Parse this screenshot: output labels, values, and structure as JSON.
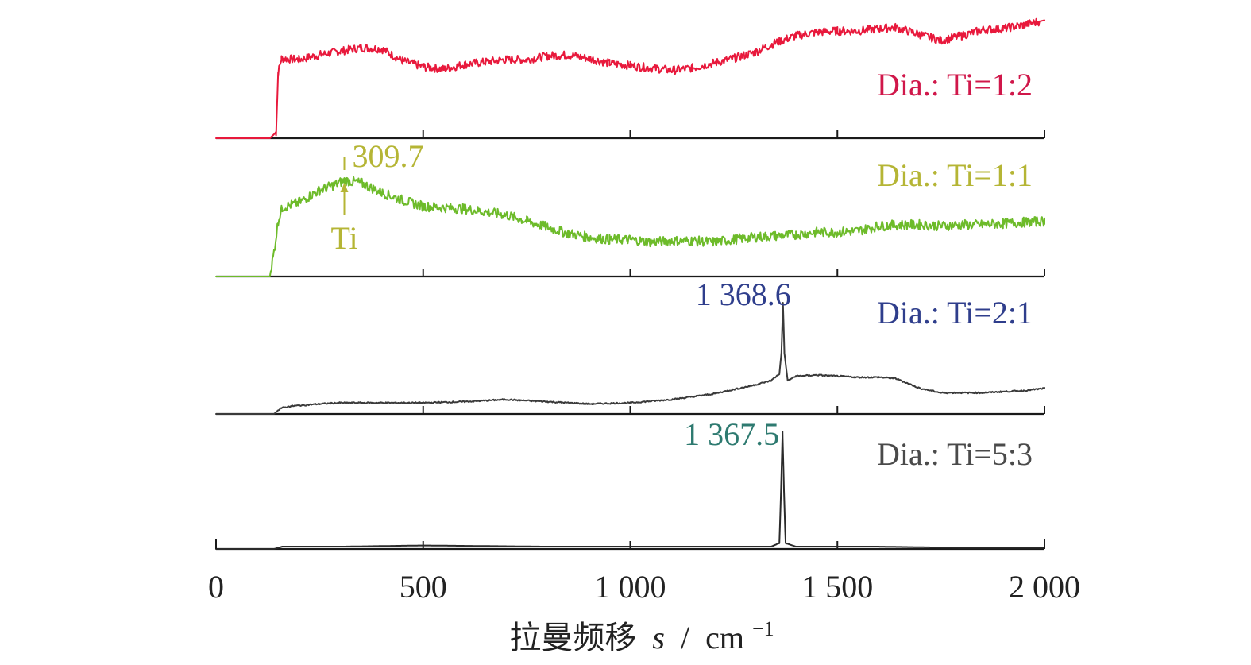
{
  "chart_data": {
    "type": "line",
    "xlabel_parts": {
      "main": "拉曼频移",
      "var": "s",
      "sep": "/",
      "unit": "cm",
      "exp": "−1"
    },
    "xlim": [
      0,
      2000
    ],
    "x_ticks": [
      {
        "value": 0,
        "label": "0"
      },
      {
        "value": 500,
        "label": "500"
      },
      {
        "value": 1000,
        "label": "1 000"
      },
      {
        "value": 1500,
        "label": "1 500"
      },
      {
        "value": 2000,
        "label": "2 000"
      }
    ],
    "grid": false,
    "stacked_panels": true,
    "series": [
      {
        "name": "Dia.: Ti=1:2",
        "color": "#e8193c",
        "label_color": "#d0174a",
        "points": [
          [
            0,
            0
          ],
          [
            100,
            0
          ],
          [
            130,
            0
          ],
          [
            145,
            0.05
          ],
          [
            150,
            0.55
          ],
          [
            158,
            0.67
          ],
          [
            200,
            0.66
          ],
          [
            250,
            0.7
          ],
          [
            300,
            0.73
          ],
          [
            350,
            0.76
          ],
          [
            400,
            0.75
          ],
          [
            450,
            0.65
          ],
          [
            500,
            0.6
          ],
          [
            550,
            0.58
          ],
          [
            600,
            0.62
          ],
          [
            650,
            0.64
          ],
          [
            700,
            0.66
          ],
          [
            750,
            0.66
          ],
          [
            800,
            0.69
          ],
          [
            850,
            0.7
          ],
          [
            900,
            0.67
          ],
          [
            950,
            0.63
          ],
          [
            1000,
            0.61
          ],
          [
            1050,
            0.59
          ],
          [
            1100,
            0.57
          ],
          [
            1150,
            0.59
          ],
          [
            1200,
            0.63
          ],
          [
            1250,
            0.67
          ],
          [
            1300,
            0.72
          ],
          [
            1350,
            0.8
          ],
          [
            1400,
            0.86
          ],
          [
            1450,
            0.89
          ],
          [
            1500,
            0.9
          ],
          [
            1550,
            0.9
          ],
          [
            1600,
            0.92
          ],
          [
            1640,
            0.93
          ],
          [
            1700,
            0.87
          ],
          [
            1750,
            0.82
          ],
          [
            1800,
            0.86
          ],
          [
            1850,
            0.91
          ],
          [
            1900,
            0.92
          ],
          [
            1950,
            0.95
          ],
          [
            2000,
            0.99
          ]
        ]
      },
      {
        "name": "Dia.: Ti=1:1",
        "color": "#6dbb2a",
        "label_color": "#b5b535",
        "points": [
          [
            0,
            0
          ],
          [
            100,
            0
          ],
          [
            130,
            0
          ],
          [
            140,
            0.2
          ],
          [
            150,
            0.45
          ],
          [
            160,
            0.56
          ],
          [
            200,
            0.6
          ],
          [
            250,
            0.7
          ],
          [
            290,
            0.75
          ],
          [
            309.7,
            0.78
          ],
          [
            350,
            0.76
          ],
          [
            400,
            0.68
          ],
          [
            450,
            0.62
          ],
          [
            500,
            0.57
          ],
          [
            600,
            0.55
          ],
          [
            700,
            0.5
          ],
          [
            750,
            0.45
          ],
          [
            800,
            0.4
          ],
          [
            850,
            0.35
          ],
          [
            900,
            0.32
          ],
          [
            950,
            0.3
          ],
          [
            1000,
            0.3
          ],
          [
            1050,
            0.28
          ],
          [
            1100,
            0.29
          ],
          [
            1150,
            0.29
          ],
          [
            1200,
            0.28
          ],
          [
            1250,
            0.3
          ],
          [
            1300,
            0.32
          ],
          [
            1350,
            0.33
          ],
          [
            1400,
            0.34
          ],
          [
            1450,
            0.36
          ],
          [
            1500,
            0.36
          ],
          [
            1550,
            0.37
          ],
          [
            1600,
            0.41
          ],
          [
            1650,
            0.42
          ],
          [
            1700,
            0.42
          ],
          [
            1750,
            0.41
          ],
          [
            1800,
            0.42
          ],
          [
            1850,
            0.42
          ],
          [
            1900,
            0.43
          ],
          [
            1950,
            0.44
          ],
          [
            2000,
            0.45
          ]
        ]
      },
      {
        "name": "Dia.: Ti=2:1",
        "color": "#3a3a3a",
        "label_color": "#2f3e8c",
        "points": [
          [
            0,
            0
          ],
          [
            100,
            0
          ],
          [
            130,
            0
          ],
          [
            140,
            0.0
          ],
          [
            155,
            0.05
          ],
          [
            180,
            0.07
          ],
          [
            250,
            0.09
          ],
          [
            300,
            0.1
          ],
          [
            400,
            0.1
          ],
          [
            500,
            0.1
          ],
          [
            600,
            0.11
          ],
          [
            700,
            0.13
          ],
          [
            800,
            0.11
          ],
          [
            900,
            0.09
          ],
          [
            1000,
            0.1
          ],
          [
            1100,
            0.13
          ],
          [
            1200,
            0.18
          ],
          [
            1250,
            0.22
          ],
          [
            1300,
            0.26
          ],
          [
            1340,
            0.3
          ],
          [
            1360,
            0.36
          ],
          [
            1365,
            0.55
          ],
          [
            1368.6,
            1.0
          ],
          [
            1372,
            0.55
          ],
          [
            1380,
            0.3
          ],
          [
            1400,
            0.34
          ],
          [
            1450,
            0.35
          ],
          [
            1500,
            0.34
          ],
          [
            1550,
            0.33
          ],
          [
            1600,
            0.33
          ],
          [
            1640,
            0.32
          ],
          [
            1700,
            0.23
          ],
          [
            1750,
            0.19
          ],
          [
            1800,
            0.19
          ],
          [
            1850,
            0.19
          ],
          [
            1900,
            0.2
          ],
          [
            1950,
            0.21
          ],
          [
            2000,
            0.23
          ]
        ]
      },
      {
        "name": "Dia.: Ti=5:3",
        "color": "#2a2a2a",
        "label_color": "#4a4a4a",
        "points": [
          [
            0,
            0
          ],
          [
            100,
            0
          ],
          [
            140,
            0
          ],
          [
            160,
            0.02
          ],
          [
            300,
            0.02
          ],
          [
            500,
            0.03
          ],
          [
            800,
            0.02
          ],
          [
            1000,
            0.02
          ],
          [
            1200,
            0.02
          ],
          [
            1340,
            0.02
          ],
          [
            1360,
            0.05
          ],
          [
            1364,
            0.5
          ],
          [
            1367.5,
            1.0
          ],
          [
            1371,
            0.5
          ],
          [
            1375,
            0.05
          ],
          [
            1400,
            0.02
          ],
          [
            1600,
            0.02
          ],
          [
            1800,
            0.01
          ],
          [
            2000,
            0.01
          ]
        ]
      }
    ],
    "annotations": [
      {
        "series": 1,
        "text": "309.7",
        "x": 309.7,
        "color": "#b5b535"
      },
      {
        "series": 1,
        "text": "Ti",
        "x": 309.7,
        "color": "#b5b535"
      },
      {
        "series": 2,
        "text": "1 368.6",
        "x": 1368.6,
        "color": "#2f3e8c"
      },
      {
        "series": 3,
        "text": "1 367.5",
        "x": 1367.5,
        "color": "#2e7a70"
      }
    ]
  }
}
